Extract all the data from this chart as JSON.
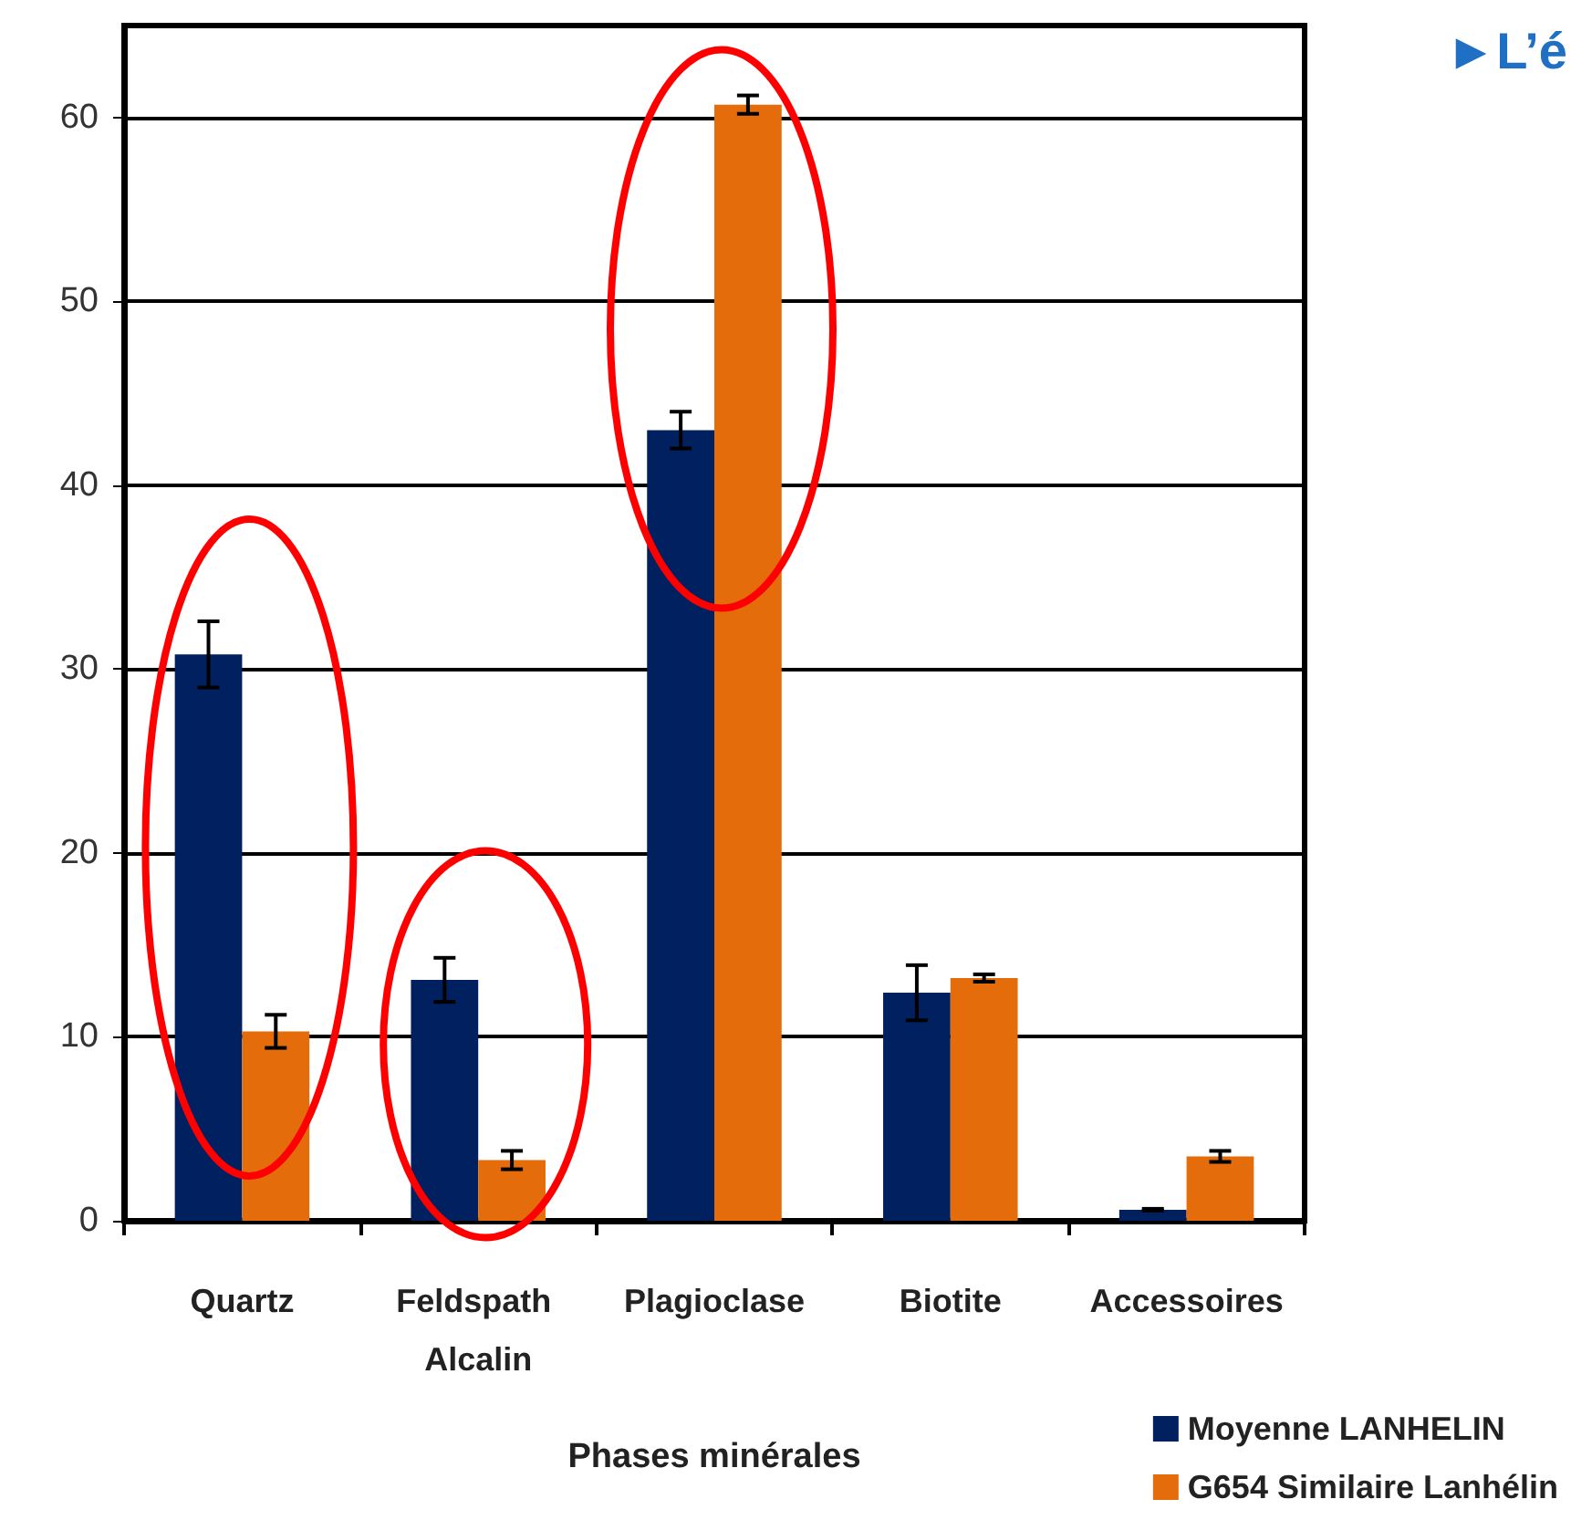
{
  "chart_data": {
    "type": "bar",
    "xlabel": "Phases minérales",
    "categories": [
      "Quartz",
      "Feldspath Alcalin",
      "Plagioclase",
      "Biotite",
      "Accessoires"
    ],
    "series": [
      {
        "name": "Moyenne LANHELIN",
        "color": "#002060",
        "values": [
          30.8,
          13.1,
          43.0,
          12.4,
          0.6
        ],
        "errors": [
          1.8,
          1.2,
          1.0,
          1.5,
          0.05
        ]
      },
      {
        "name": "G654 Similaire Lanhélin",
        "color": "#e46c0a",
        "values": [
          10.3,
          3.3,
          60.7,
          13.2,
          3.5
        ],
        "errors": [
          0.9,
          0.5,
          0.5,
          0.2,
          0.3
        ]
      }
    ],
    "ylim": [
      0,
      65
    ],
    "yticks": [
      0,
      10,
      20,
      30,
      40,
      50,
      60
    ],
    "grid": "y",
    "legend": "bottom right",
    "annotations": [
      "►L’é"
    ]
  }
}
